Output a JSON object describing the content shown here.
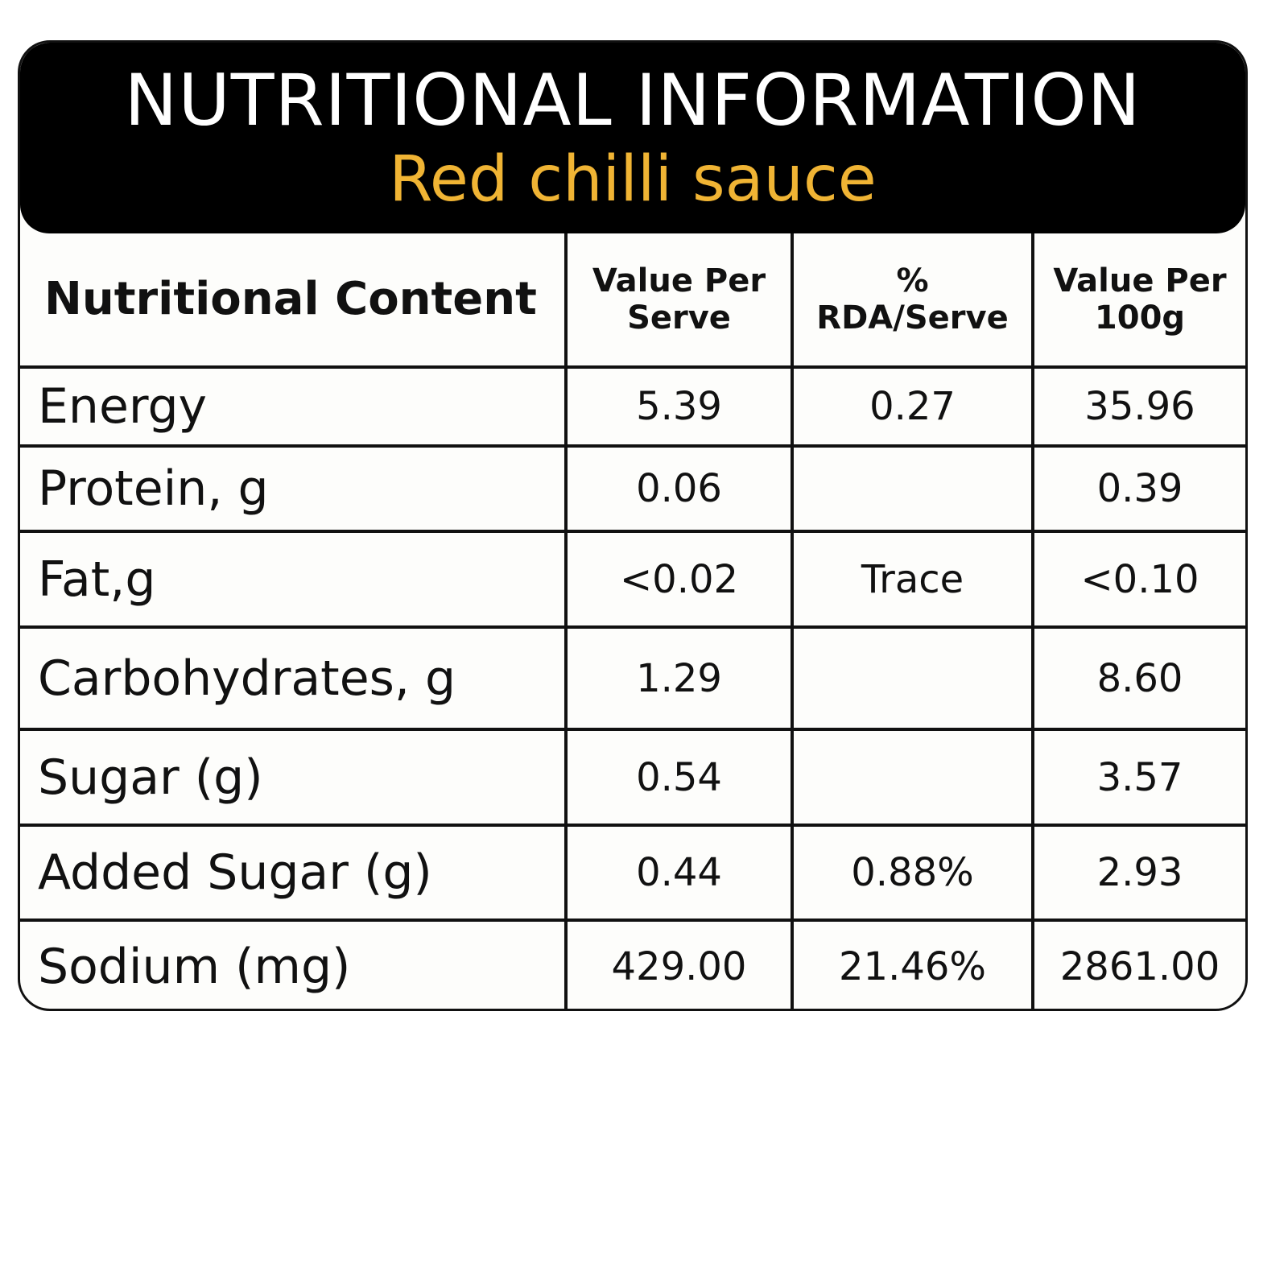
{
  "header": {
    "title": "NUTRITIONAL INFORMATION",
    "subtitle": "Red chilli sauce"
  },
  "table": {
    "columns": [
      "Nutritional Content",
      "Value Per Serve",
      "% RDA/Serve",
      "Value Per 100g"
    ],
    "rows": [
      [
        "Energy",
        "5.39",
        "0.27",
        "35.96"
      ],
      [
        "Protein, g",
        "0.06",
        null,
        "0.39"
      ],
      [
        "Fat,g",
        "<0.02",
        "Trace",
        "<0.10"
      ],
      [
        "Carbohydrates, g",
        "1.29",
        null,
        "8.60"
      ],
      [
        "Sugar (g)",
        "0.54",
        null,
        "3.57"
      ],
      [
        "Added Sugar (g)",
        "0.44",
        "0.88%",
        "2.93"
      ],
      [
        "Sodium (mg)",
        "429.00",
        "21.46%",
        "2861.00"
      ]
    ]
  }
}
